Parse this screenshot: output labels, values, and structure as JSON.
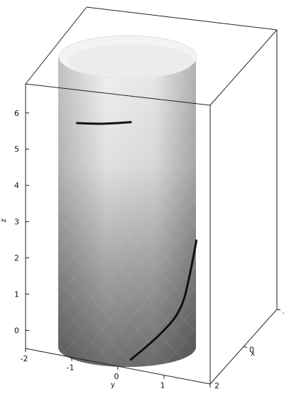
{
  "chart_data": {
    "type": "surface3d",
    "title": "",
    "axes": {
      "x": {
        "label": "x",
        "ticks": [
          "0",
          "-2"
        ],
        "range": [
          -2,
          2
        ]
      },
      "y": {
        "label": "y",
        "ticks": [
          "-2",
          "-1",
          "0",
          "1",
          "2"
        ],
        "range": [
          -2,
          2
        ]
      },
      "z": {
        "label": "z",
        "ticks": [
          "0",
          "1",
          "2",
          "3",
          "4",
          "5",
          "6"
        ],
        "range": [
          -0.5,
          6.8
        ]
      },
      "corner_label": "2"
    },
    "surface": {
      "shape": "cylinder",
      "radius": 2,
      "z_range": [
        -0.5,
        6.8
      ],
      "shading": "grayscale gradient, dark at bottom, light at top"
    },
    "curves": [
      {
        "name": "",
        "color": "#111111",
        "points": [
          [
            0.0,
            -1.7,
            5.75
          ],
          [
            0.0,
            -0.9,
            5.8
          ],
          [
            0.0,
            0.1,
            5.95
          ]
        ]
      },
      {
        "name": "",
        "color": "#111111",
        "points": [
          [
            0.0,
            0.1,
            -0.6
          ],
          [
            0.0,
            1.0,
            0.1
          ],
          [
            0.0,
            1.8,
            0.9
          ],
          [
            0.0,
            2.1,
            2.0
          ],
          [
            0.0,
            2.3,
            2.9
          ]
        ]
      }
    ],
    "grid": false,
    "legend": null
  }
}
